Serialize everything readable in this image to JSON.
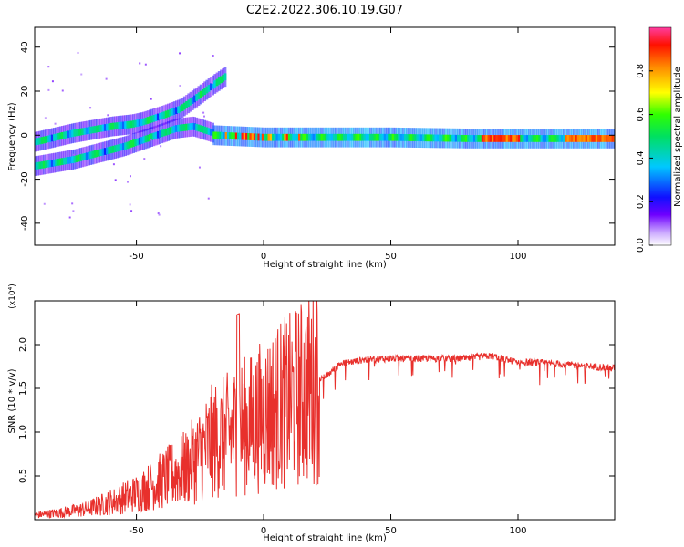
{
  "title": "C2E2.2022.306.10.19.G07",
  "chart_data": [
    {
      "type": "heatmap",
      "xlabel": "Height of straight line (km)",
      "ylabel": "Frequency (Hz)",
      "xlim": [
        -90,
        138
      ],
      "ylim": [
        -50,
        49
      ],
      "xticks": [
        -50,
        0,
        50,
        100
      ],
      "yticks": [
        -40,
        -20,
        0,
        20,
        40
      ],
      "colorbar": {
        "label": "Normalized spectral amplitude",
        "range": [
          0.0,
          1.0
        ],
        "ticks": [
          "0.0",
          "0.2",
          "0.4",
          "0.6",
          "0.8"
        ]
      },
      "tracks": [
        {
          "name": "",
          "points": [
            [
              -90,
              -3
            ],
            [
              -75,
              1
            ],
            [
              -60,
              4
            ],
            [
              -52,
              5
            ],
            [
              -48,
              6
            ],
            [
              -40,
              9
            ],
            [
              -33,
              12
            ],
            [
              -27,
              17
            ],
            [
              -20,
              23
            ],
            [
              -15,
              27
            ]
          ],
          "peak_amplitude": 0.35
        },
        {
          "name": "",
          "points": [
            [
              -90,
              -14
            ],
            [
              -75,
              -11
            ],
            [
              -65,
              -8
            ],
            [
              -55,
              -5
            ],
            [
              -45,
              -1
            ],
            [
              -40,
              1
            ],
            [
              -35,
              3
            ],
            [
              -28,
              4
            ],
            [
              -20,
              1
            ]
          ],
          "peak_amplitude": 0.4
        },
        {
          "name": "",
          "points": [
            [
              -20,
              0
            ],
            [
              0,
              -1
            ],
            [
              20,
              -1
            ],
            [
              50,
              -1
            ],
            [
              80,
              -1.5
            ],
            [
              100,
              -1.5
            ],
            [
              120,
              -1.5
            ],
            [
              138,
              -1.5
            ]
          ],
          "peak_amplitude": 0.95
        }
      ]
    },
    {
      "type": "line",
      "xlabel": "Height of straight line (km)",
      "ylabel": "SNR (10 * v/v)",
      "y_multiplier": "(x10⁴)",
      "xlim": [
        -90,
        138
      ],
      "ylim": [
        0,
        2.5
      ],
      "xticks": [
        -50,
        0,
        50,
        100
      ],
      "yticks": [
        "0.5",
        "1.0",
        "1.5",
        "2.0"
      ],
      "color": "#e8302c",
      "series": [
        {
          "name": "",
          "x": [
            -90,
            -80,
            -70,
            -60,
            -50,
            -40,
            -30,
            -25,
            -20,
            -15,
            -10,
            -5,
            0,
            5,
            10,
            15,
            20,
            25,
            30,
            40,
            50,
            60,
            70,
            80,
            85,
            90,
            95,
            100,
            110,
            120,
            130,
            138
          ],
          "y": [
            0.05,
            0.08,
            0.12,
            0.2,
            0.3,
            0.45,
            0.6,
            0.75,
            0.9,
            0.95,
            1.05,
            1.1,
            1.2,
            1.3,
            1.35,
            1.45,
            1.55,
            1.65,
            1.78,
            1.83,
            1.84,
            1.84,
            1.84,
            1.84,
            1.86,
            1.87,
            1.83,
            1.8,
            1.79,
            1.77,
            1.75,
            1.73
          ]
        }
      ]
    }
  ]
}
